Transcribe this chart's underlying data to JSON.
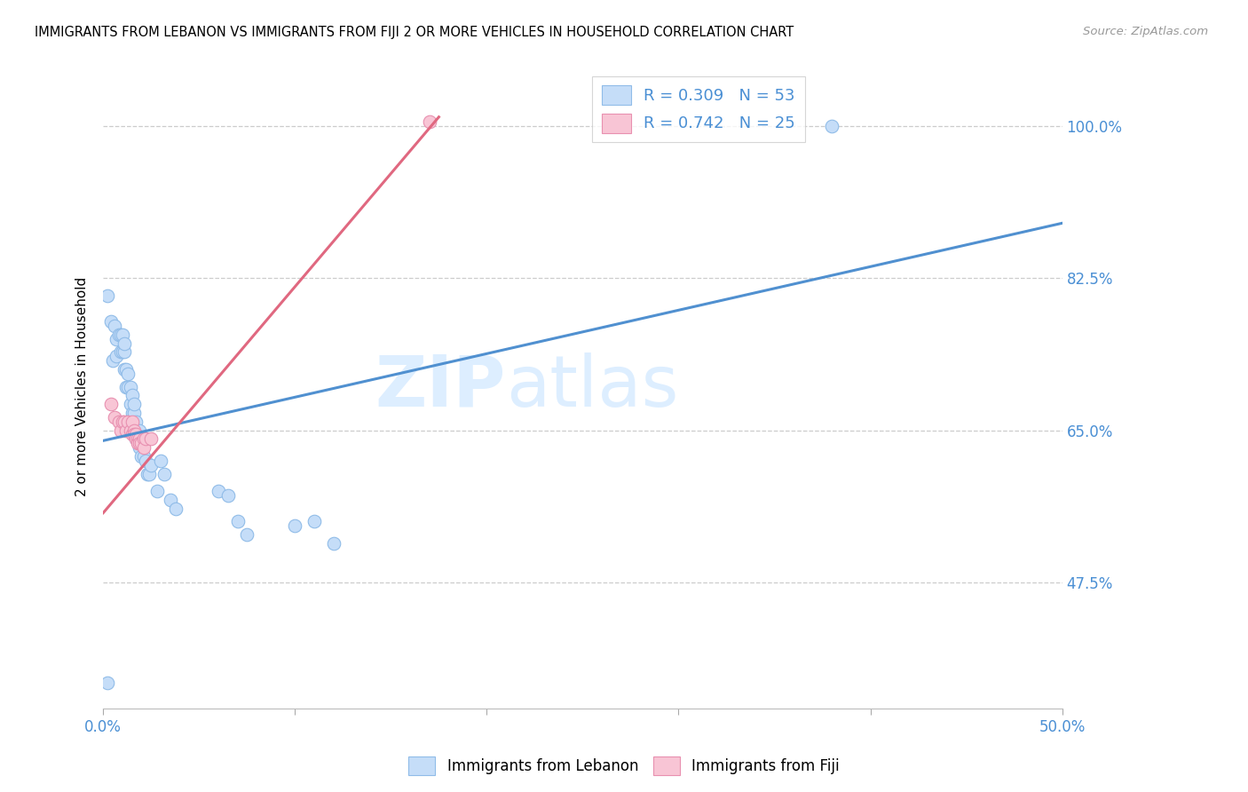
{
  "title": "IMMIGRANTS FROM LEBANON VS IMMIGRANTS FROM FIJI 2 OR MORE VEHICLES IN HOUSEHOLD CORRELATION CHART",
  "source": "Source: ZipAtlas.com",
  "ylabel": "2 or more Vehicles in Household",
  "xlim": [
    0.0,
    0.5
  ],
  "ylim": [
    0.33,
    1.07
  ],
  "xtick_positions": [
    0.0,
    0.1,
    0.2,
    0.3,
    0.4,
    0.5
  ],
  "xticklabels": [
    "0.0%",
    "",
    "",
    "",
    "",
    "50.0%"
  ],
  "ytick_positions": [
    0.475,
    0.65,
    0.825,
    1.0
  ],
  "yticklabels": [
    "47.5%",
    "65.0%",
    "82.5%",
    "100.0%"
  ],
  "lebanon_color": "#c5ddf8",
  "fiji_color": "#f8c5d5",
  "lebanon_edge": "#90bce8",
  "fiji_edge": "#e890b0",
  "lebanon_line": "#5090d0",
  "fiji_line": "#e06880",
  "legend_r1": "R = 0.309   N = 53",
  "legend_r2": "R = 0.742   N = 25",
  "watermark_zip": "ZIP",
  "watermark_atlas": "atlas",
  "watermark_color": "#ddeeff",
  "lebanon_x": [
    0.002,
    0.004,
    0.005,
    0.006,
    0.007,
    0.007,
    0.008,
    0.009,
    0.009,
    0.01,
    0.01,
    0.011,
    0.011,
    0.011,
    0.012,
    0.012,
    0.013,
    0.013,
    0.014,
    0.014,
    0.015,
    0.015,
    0.016,
    0.016,
    0.016,
    0.017,
    0.017,
    0.018,
    0.018,
    0.019,
    0.019,
    0.02,
    0.02,
    0.021,
    0.021,
    0.022,
    0.023,
    0.024,
    0.025,
    0.028,
    0.03,
    0.032,
    0.035,
    0.038,
    0.06,
    0.065,
    0.07,
    0.075,
    0.1,
    0.11,
    0.12,
    0.38,
    0.002
  ],
  "lebanon_y": [
    0.805,
    0.775,
    0.73,
    0.77,
    0.735,
    0.755,
    0.76,
    0.74,
    0.76,
    0.74,
    0.76,
    0.74,
    0.72,
    0.75,
    0.72,
    0.7,
    0.715,
    0.7,
    0.7,
    0.68,
    0.69,
    0.67,
    0.67,
    0.65,
    0.68,
    0.66,
    0.64,
    0.65,
    0.64,
    0.65,
    0.63,
    0.635,
    0.62,
    0.64,
    0.62,
    0.615,
    0.6,
    0.6,
    0.61,
    0.58,
    0.615,
    0.6,
    0.57,
    0.56,
    0.58,
    0.575,
    0.545,
    0.53,
    0.54,
    0.545,
    0.52,
    1.0,
    0.36
  ],
  "fiji_x": [
    0.004,
    0.006,
    0.008,
    0.009,
    0.01,
    0.011,
    0.012,
    0.013,
    0.014,
    0.015,
    0.015,
    0.016,
    0.016,
    0.017,
    0.017,
    0.018,
    0.018,
    0.019,
    0.019,
    0.02,
    0.021,
    0.021,
    0.022,
    0.025,
    0.17
  ],
  "fiji_y": [
    0.68,
    0.665,
    0.66,
    0.65,
    0.66,
    0.66,
    0.65,
    0.66,
    0.65,
    0.66,
    0.645,
    0.65,
    0.645,
    0.645,
    0.64,
    0.64,
    0.635,
    0.64,
    0.635,
    0.635,
    0.64,
    0.63,
    0.64,
    0.64,
    1.005
  ],
  "lebanon_trend_x": [
    0.0,
    0.5
  ],
  "lebanon_trend_y": [
    0.638,
    0.888
  ],
  "fiji_trend_x": [
    0.0,
    0.175
  ],
  "fiji_trend_y": [
    0.555,
    1.01
  ]
}
